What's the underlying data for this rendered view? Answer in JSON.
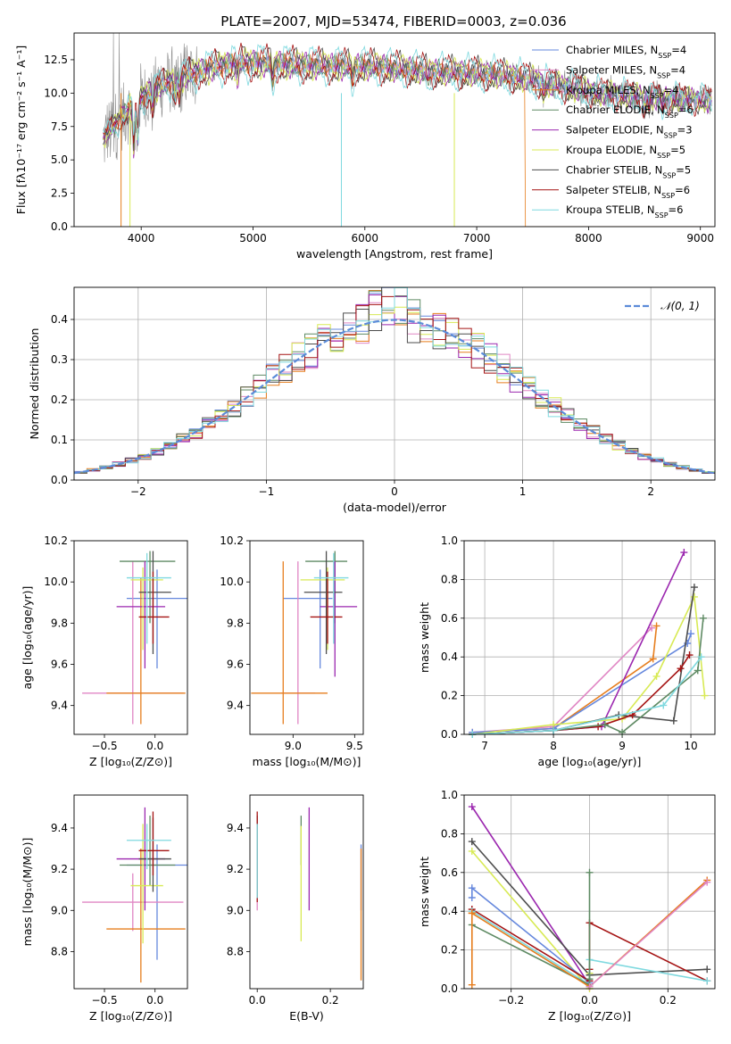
{
  "figure": {
    "title": "PLATE=2007, MJD=53474, FIBERID=0003, z=0.036"
  },
  "colors": {
    "Chabrier MILES": "#6688dd",
    "Salpeter MILES": "#e086c4",
    "Kroupa MILES": "#e67e1e",
    "Chabrier ELODIE": "#5e8a63",
    "Salpeter ELODIE": "#9b27af",
    "Kroupa ELODIE": "#d8ea55",
    "Chabrier STELIB": "#4d4d4d",
    "Salpeter STELIB": "#a51313",
    "Kroupa STELIB": "#7fd9df",
    "data": "#8c8c8c",
    "gauss": "#5b8bd8"
  },
  "chart_data": [
    {
      "id": "spectrum",
      "type": "line",
      "title": "PLATE=2007, MJD=53474, FIBERID=0003, z=0.036",
      "xlabel": "wavelength [Angstrom, rest frame]",
      "ylabel": "Flux [fλ10⁻¹⁷ erg cm⁻² s⁻¹ A⁻¹]",
      "xlim": [
        3400,
        9130
      ],
      "ylim": [
        0,
        14.5
      ],
      "xticks": [
        4000,
        5000,
        6000,
        7000,
        8000,
        9000
      ],
      "yticks": [
        0.0,
        2.5,
        5.0,
        7.5,
        10.0,
        12.5
      ],
      "legend_position": "upper-right",
      "legend": [
        {
          "label": "Chabrier MILES, N",
          "sub": "SSP",
          "tail": "=4",
          "model": "Chabrier MILES"
        },
        {
          "label": "Salpeter MILES, N",
          "sub": "SSP",
          "tail": "=4",
          "model": "Salpeter MILES"
        },
        {
          "label": "Kroupa MILES, N",
          "sub": "SSP",
          "tail": "=4",
          "model": "Kroupa MILES"
        },
        {
          "label": "Chabrier ELODIE, N",
          "sub": "SSP",
          "tail": "=6",
          "model": "Chabrier ELODIE"
        },
        {
          "label": "Salpeter ELODIE, N",
          "sub": "SSP",
          "tail": "=3",
          "model": "Salpeter ELODIE"
        },
        {
          "label": "Kroupa ELODIE, N",
          "sub": "SSP",
          "tail": "=5",
          "model": "Kroupa ELODIE"
        },
        {
          "label": "Chabrier STELIB, N",
          "sub": "SSP",
          "tail": "=5",
          "model": "Chabrier STELIB"
        },
        {
          "label": "Salpeter STELIB, N",
          "sub": "SSP",
          "tail": "=6",
          "model": "Salpeter STELIB"
        },
        {
          "label": "Kroupa STELIB, N",
          "sub": "SSP",
          "tail": "=6",
          "model": "Kroupa STELIB"
        }
      ],
      "continuum": [
        [
          3650,
          6.5
        ],
        [
          3800,
          8.0
        ],
        [
          3950,
          9.3
        ],
        [
          4100,
          10.3
        ],
        [
          4300,
          11.0
        ],
        [
          4500,
          11.6
        ],
        [
          4700,
          12.0
        ],
        [
          4900,
          12.3
        ],
        [
          5200,
          12.2
        ],
        [
          5500,
          12.1
        ],
        [
          5800,
          12.0
        ],
        [
          6100,
          12.0
        ],
        [
          6400,
          11.8
        ],
        [
          6700,
          11.6
        ],
        [
          7000,
          11.5
        ],
        [
          7300,
          11.3
        ],
        [
          7500,
          11.0
        ],
        [
          7700,
          10.6
        ],
        [
          7900,
          10.3
        ],
        [
          8100,
          10.0
        ],
        [
          8400,
          9.8
        ],
        [
          8700,
          9.6
        ],
        [
          9000,
          9.5
        ],
        [
          9100,
          9.4
        ]
      ]
    },
    {
      "id": "residuals",
      "type": "histogram",
      "xlabel": "(data-model)/error",
      "ylabel": "Normed distribution",
      "xlim": [
        -2.5,
        2.5
      ],
      "ylim": [
        0,
        0.48
      ],
      "xticks": [
        -2,
        -1,
        0,
        1,
        2
      ],
      "yticks": [
        0.0,
        0.1,
        0.2,
        0.3,
        0.4
      ],
      "legend": "𝒩(0, 1)",
      "legend_position": "upper-right",
      "bin_edges": [
        -2.5,
        2.5
      ],
      "n_bins": 50,
      "gaussian": {
        "mu": 0,
        "sigma": 1
      }
    },
    {
      "id": "age-vs-Z",
      "type": "errorbar",
      "xlabel": "Z [log₁₀(Z/Z⊙)]",
      "ylabel": "age  [log₁₀(age/yr)]",
      "xlim": [
        -0.8,
        0.32
      ],
      "ylim": [
        9.26,
        10.2
      ],
      "xticks": [
        -0.5,
        0.0
      ],
      "yticks": [
        9.4,
        9.6,
        9.8,
        10.0,
        10.2
      ],
      "points": [
        {
          "model": "Chabrier MILES",
          "x": 0.02,
          "xerr": [
            0.3,
            0.3
          ],
          "y": 9.92,
          "yerr": [
            0.34,
            0.14
          ]
        },
        {
          "model": "Salpeter MILES",
          "x": -0.22,
          "xerr": [
            0.5,
            0.5
          ],
          "y": 9.46,
          "yerr": [
            0.15,
            0.64
          ]
        },
        {
          "model": "Kroupa MILES",
          "x": -0.14,
          "xerr": [
            0.34,
            0.44
          ],
          "y": 9.46,
          "yerr": [
            0.15,
            0.56
          ]
        },
        {
          "model": "Chabrier ELODIE",
          "x": -0.05,
          "xerr": [
            0.3,
            0.25
          ],
          "y": 10.1,
          "yerr": [
            0.3,
            0.05
          ]
        },
        {
          "model": "Salpeter ELODIE",
          "x": -0.1,
          "xerr": [
            0.28,
            0.2
          ],
          "y": 9.88,
          "yerr": [
            0.3,
            0.22
          ]
        },
        {
          "model": "Kroupa ELODIE",
          "x": -0.12,
          "xerr": [
            0.12,
            0.2
          ],
          "y": 10.01,
          "yerr": [
            0.34,
            0.06
          ]
        },
        {
          "model": "Chabrier STELIB",
          "x": -0.02,
          "xerr": [
            0.14,
            0.18
          ],
          "y": 9.95,
          "yerr": [
            0.3,
            0.2
          ]
        },
        {
          "model": "Salpeter STELIB",
          "x": -0.02,
          "xerr": [
            0.14,
            0.16
          ],
          "y": 9.83,
          "yerr": [
            0.13,
            0.22
          ]
        },
        {
          "model": "Kroupa STELIB",
          "x": -0.08,
          "xerr": [
            0.2,
            0.24
          ],
          "y": 10.02,
          "yerr": [
            0.32,
            0.12
          ]
        }
      ]
    },
    {
      "id": "age-vs-mass",
      "type": "errorbar",
      "xlabel": "mass [log₁₀(M/M⊙)]",
      "xlim": [
        8.65,
        9.57
      ],
      "ylim": [
        9.26,
        10.2
      ],
      "xticks": [
        9.0,
        9.5
      ],
      "yticks": [
        9.4,
        9.6,
        9.8,
        10.0,
        10.2
      ],
      "points": [
        {
          "model": "Chabrier MILES",
          "x": 9.22,
          "xerr": [
            0.3,
            0.1
          ],
          "y": 9.92,
          "yerr": [
            0.34,
            0.14
          ]
        },
        {
          "model": "Salpeter MILES",
          "x": 9.04,
          "xerr": [
            0.14,
            0.14
          ],
          "y": 9.46,
          "yerr": [
            0.15,
            0.64
          ]
        },
        {
          "model": "Kroupa MILES",
          "x": 8.92,
          "xerr": [
            0.26,
            0.36
          ],
          "y": 9.46,
          "yerr": [
            0.15,
            0.64
          ]
        },
        {
          "model": "Chabrier ELODIE",
          "x": 9.34,
          "xerr": [
            0.24,
            0.1
          ],
          "y": 10.1,
          "yerr": [
            0.3,
            0.05
          ]
        },
        {
          "model": "Salpeter ELODIE",
          "x": 9.34,
          "xerr": [
            0.12,
            0.18
          ],
          "y": 9.88,
          "yerr": [
            0.34,
            0.22
          ]
        },
        {
          "model": "Kroupa ELODIE",
          "x": 9.28,
          "xerr": [
            0.22,
            0.14
          ],
          "y": 10.01,
          "yerr": [
            0.34,
            0.06
          ]
        },
        {
          "model": "Chabrier STELIB",
          "x": 9.27,
          "xerr": [
            0.18,
            0.13
          ],
          "y": 9.95,
          "yerr": [
            0.3,
            0.2
          ]
        },
        {
          "model": "Salpeter STELIB",
          "x": 9.28,
          "xerr": [
            0.14,
            0.12
          ],
          "y": 9.83,
          "yerr": [
            0.13,
            0.22
          ]
        },
        {
          "model": "Kroupa STELIB",
          "x": 9.33,
          "xerr": [
            0.16,
            0.12
          ],
          "y": 10.02,
          "yerr": [
            0.32,
            0.12
          ]
        }
      ]
    },
    {
      "id": "weight-vs-age",
      "type": "line",
      "xlabel": "age  [log₁₀(age/yr)]",
      "ylabel": "mass weight",
      "xlim": [
        6.7,
        10.35
      ],
      "ylim": [
        0,
        1.0
      ],
      "xticks": [
        7,
        8,
        9,
        10
      ],
      "yticks": [
        0.0,
        0.2,
        0.4,
        0.6,
        0.8,
        1.0
      ],
      "series": [
        {
          "model": "Kroupa MILES",
          "x": [
            6.82,
            8.0,
            9.45,
            9.5
          ],
          "y": [
            0.01,
            0.03,
            0.39,
            0.56
          ]
        },
        {
          "model": "Salpeter MILES",
          "x": [
            6.82,
            8.0,
            9.43
          ],
          "y": [
            0.01,
            0.04,
            0.55
          ]
        },
        {
          "model": "Chabrier MILES",
          "x": [
            6.82,
            8.0,
            9.95,
            10.0
          ],
          "y": [
            0.01,
            0.03,
            0.47,
            0.52
          ]
        },
        {
          "model": "Salpeter ELODIE",
          "x": [
            6.82,
            8.0,
            8.7,
            9.9
          ],
          "y": [
            0.0,
            0.02,
            0.04,
            0.94
          ]
        },
        {
          "model": "Kroupa ELODIE",
          "x": [
            6.82,
            8.0,
            9.0,
            9.5,
            10.05,
            10.2
          ],
          "y": [
            0.0,
            0.05,
            0.08,
            0.3,
            0.71,
            0.2
          ]
        },
        {
          "model": "Chabrier STELIB",
          "x": [
            6.82,
            8.0,
            8.95,
            9.75,
            10.05
          ],
          "y": [
            0.0,
            0.02,
            0.1,
            0.07,
            0.76
          ]
        },
        {
          "model": "Salpeter STELIB",
          "x": [
            6.82,
            8.0,
            8.65,
            9.15,
            9.85,
            9.98
          ],
          "y": [
            0.0,
            0.02,
            0.04,
            0.1,
            0.34,
            0.41
          ]
        },
        {
          "model": "Chabrier ELODIE",
          "x": [
            6.82,
            8.0,
            8.75,
            9.0,
            10.1,
            10.18
          ],
          "y": [
            0.0,
            0.02,
            0.05,
            0.01,
            0.33,
            0.6
          ]
        },
        {
          "model": "Kroupa STELIB",
          "x": [
            6.82,
            8.0,
            9.6,
            10.15
          ],
          "y": [
            0.0,
            0.02,
            0.15,
            0.4
          ]
        }
      ]
    },
    {
      "id": "mass-vs-Z",
      "type": "errorbar",
      "xlabel": "Z [log₁₀(Z/Z⊙)]",
      "ylabel": "mass [log₁₀(M/M⊙)]",
      "xlim": [
        -0.8,
        0.32
      ],
      "ylim": [
        8.62,
        9.56
      ],
      "xticks": [
        -0.5,
        0.0
      ],
      "yticks": [
        8.8,
        9.0,
        9.2,
        9.4
      ],
      "points": [
        {
          "model": "Chabrier MILES",
          "x": 0.02,
          "xerr": [
            0.3,
            0.3
          ],
          "y": 9.22,
          "yerr": [
            0.46,
            0.1
          ]
        },
        {
          "model": "Salpeter MILES",
          "x": -0.22,
          "xerr": [
            0.5,
            0.5
          ],
          "y": 9.04,
          "yerr": [
            0.14,
            0.14
          ]
        },
        {
          "model": "Kroupa MILES",
          "x": -0.14,
          "xerr": [
            0.34,
            0.44
          ],
          "y": 8.91,
          "yerr": [
            0.26,
            0.39
          ]
        },
        {
          "model": "Chabrier ELODIE",
          "x": -0.05,
          "xerr": [
            0.3,
            0.25
          ],
          "y": 9.22,
          "yerr": [
            0.1,
            0.24
          ]
        },
        {
          "model": "Salpeter ELODIE",
          "x": -0.1,
          "xerr": [
            0.28,
            0.2
          ],
          "y": 9.25,
          "yerr": [
            0.25,
            0.25
          ]
        },
        {
          "model": "Kroupa ELODIE",
          "x": -0.12,
          "xerr": [
            0.12,
            0.2
          ],
          "y": 9.12,
          "yerr": [
            0.28,
            0.3
          ]
        },
        {
          "model": "Chabrier STELIB",
          "x": -0.02,
          "xerr": [
            0.14,
            0.18
          ],
          "y": 9.25,
          "yerr": [
            0.16,
            0.2
          ]
        },
        {
          "model": "Salpeter STELIB",
          "x": -0.02,
          "xerr": [
            0.14,
            0.16
          ],
          "y": 9.29,
          "yerr": [
            0.12,
            0.19
          ]
        },
        {
          "model": "Kroupa STELIB",
          "x": -0.08,
          "xerr": [
            0.2,
            0.24
          ],
          "y": 9.34,
          "yerr": [
            0.14,
            0.08
          ]
        }
      ]
    },
    {
      "id": "mass-vs-EBV",
      "type": "errorbar",
      "xlabel": "E(B-V)",
      "xlim": [
        -0.02,
        0.29
      ],
      "ylim": [
        8.62,
        9.56
      ],
      "xticks": [
        0.0,
        0.2
      ],
      "yticks": [
        8.8,
        9.0,
        9.2,
        9.4
      ],
      "points": [
        {
          "model": "Chabrier MILES",
          "x": 0.284,
          "y": 9.15,
          "yerr": [
            0.15,
            0.17
          ]
        },
        {
          "model": "Salpeter MILES",
          "x": 0.0,
          "y": 9.2,
          "yerr": [
            0.2,
            0.1
          ]
        },
        {
          "model": "Kroupa MILES",
          "x": 0.284,
          "y": 8.98,
          "yerr": [
            0.32,
            0.32
          ]
        },
        {
          "model": "Chabrier ELODIE",
          "x": 0.12,
          "y": 9.27,
          "yerr": [
            0.05,
            0.19
          ]
        },
        {
          "model": "Salpeter ELODIE",
          "x": 0.142,
          "y": 9.25,
          "yerr": [
            0.25,
            0.25
          ]
        },
        {
          "model": "Kroupa ELODIE",
          "x": 0.12,
          "y": 9.13,
          "yerr": [
            0.28,
            0.28
          ]
        },
        {
          "model": "Chabrier STELIB",
          "x": 0.0,
          "y": 9.26,
          "yerr": [
            0.2,
            0.2
          ]
        },
        {
          "model": "Salpeter STELIB",
          "x": 0.0,
          "y": 9.29,
          "yerr": [
            0.25,
            0.19
          ]
        },
        {
          "model": "Kroupa STELIB",
          "x": 0.0,
          "y": 9.2,
          "yerr": [
            0.14,
            0.22
          ]
        }
      ]
    },
    {
      "id": "weight-vs-Z",
      "type": "line",
      "xlabel": "Z [log₁₀(Z/Z⊙)]",
      "ylabel": "mass weight",
      "xlim": [
        -0.32,
        0.32
      ],
      "ylim": [
        0,
        1.0
      ],
      "xticks": [
        -0.2,
        0.0,
        0.2
      ],
      "yticks": [
        0.0,
        0.2,
        0.4,
        0.6,
        0.8,
        1.0
      ],
      "series": [
        {
          "model": "Salpeter ELODIE",
          "x": [
            -0.3,
            0.0,
            0.0
          ],
          "y": [
            0.94,
            0.02,
            0.04
          ]
        },
        {
          "model": "Chabrier STELIB",
          "x": [
            -0.3,
            0.0,
            0.0,
            0.0,
            0.3
          ],
          "y": [
            0.76,
            0.07,
            0.02,
            0.07,
            0.1
          ]
        },
        {
          "model": "Kroupa ELODIE",
          "x": [
            -0.3,
            0.0,
            0.0
          ],
          "y": [
            0.71,
            0.0,
            0.08
          ]
        },
        {
          "model": "Chabrier MILES",
          "x": [
            -0.3,
            -0.3,
            0.0
          ],
          "y": [
            0.47,
            0.52,
            0.03
          ]
        },
        {
          "model": "Salpeter STELIB",
          "x": [
            -0.3,
            0.0,
            0.0,
            0.0,
            0.3
          ],
          "y": [
            0.41,
            0.04,
            0.1,
            0.34,
            0.04
          ]
        },
        {
          "model": "Kroupa STELIB",
          "x": [
            -0.3,
            0.0,
            0.0,
            0.3
          ],
          "y": [
            0.4,
            0.02,
            0.15,
            0.04
          ]
        },
        {
          "model": "Chabrier ELODIE",
          "x": [
            -0.3,
            0.0,
            0.0,
            0.0
          ],
          "y": [
            0.33,
            0.02,
            0.05,
            0.6
          ]
        },
        {
          "model": "Kroupa MILES",
          "x": [
            -0.3,
            -0.3,
            -0.3,
            0.0,
            0.3
          ],
          "y": [
            0.39,
            0.02,
            0.39,
            0.01,
            0.56
          ]
        },
        {
          "model": "Salpeter MILES",
          "x": [
            0.0,
            0.3
          ],
          "y": [
            0.01,
            0.55
          ]
        }
      ]
    }
  ]
}
